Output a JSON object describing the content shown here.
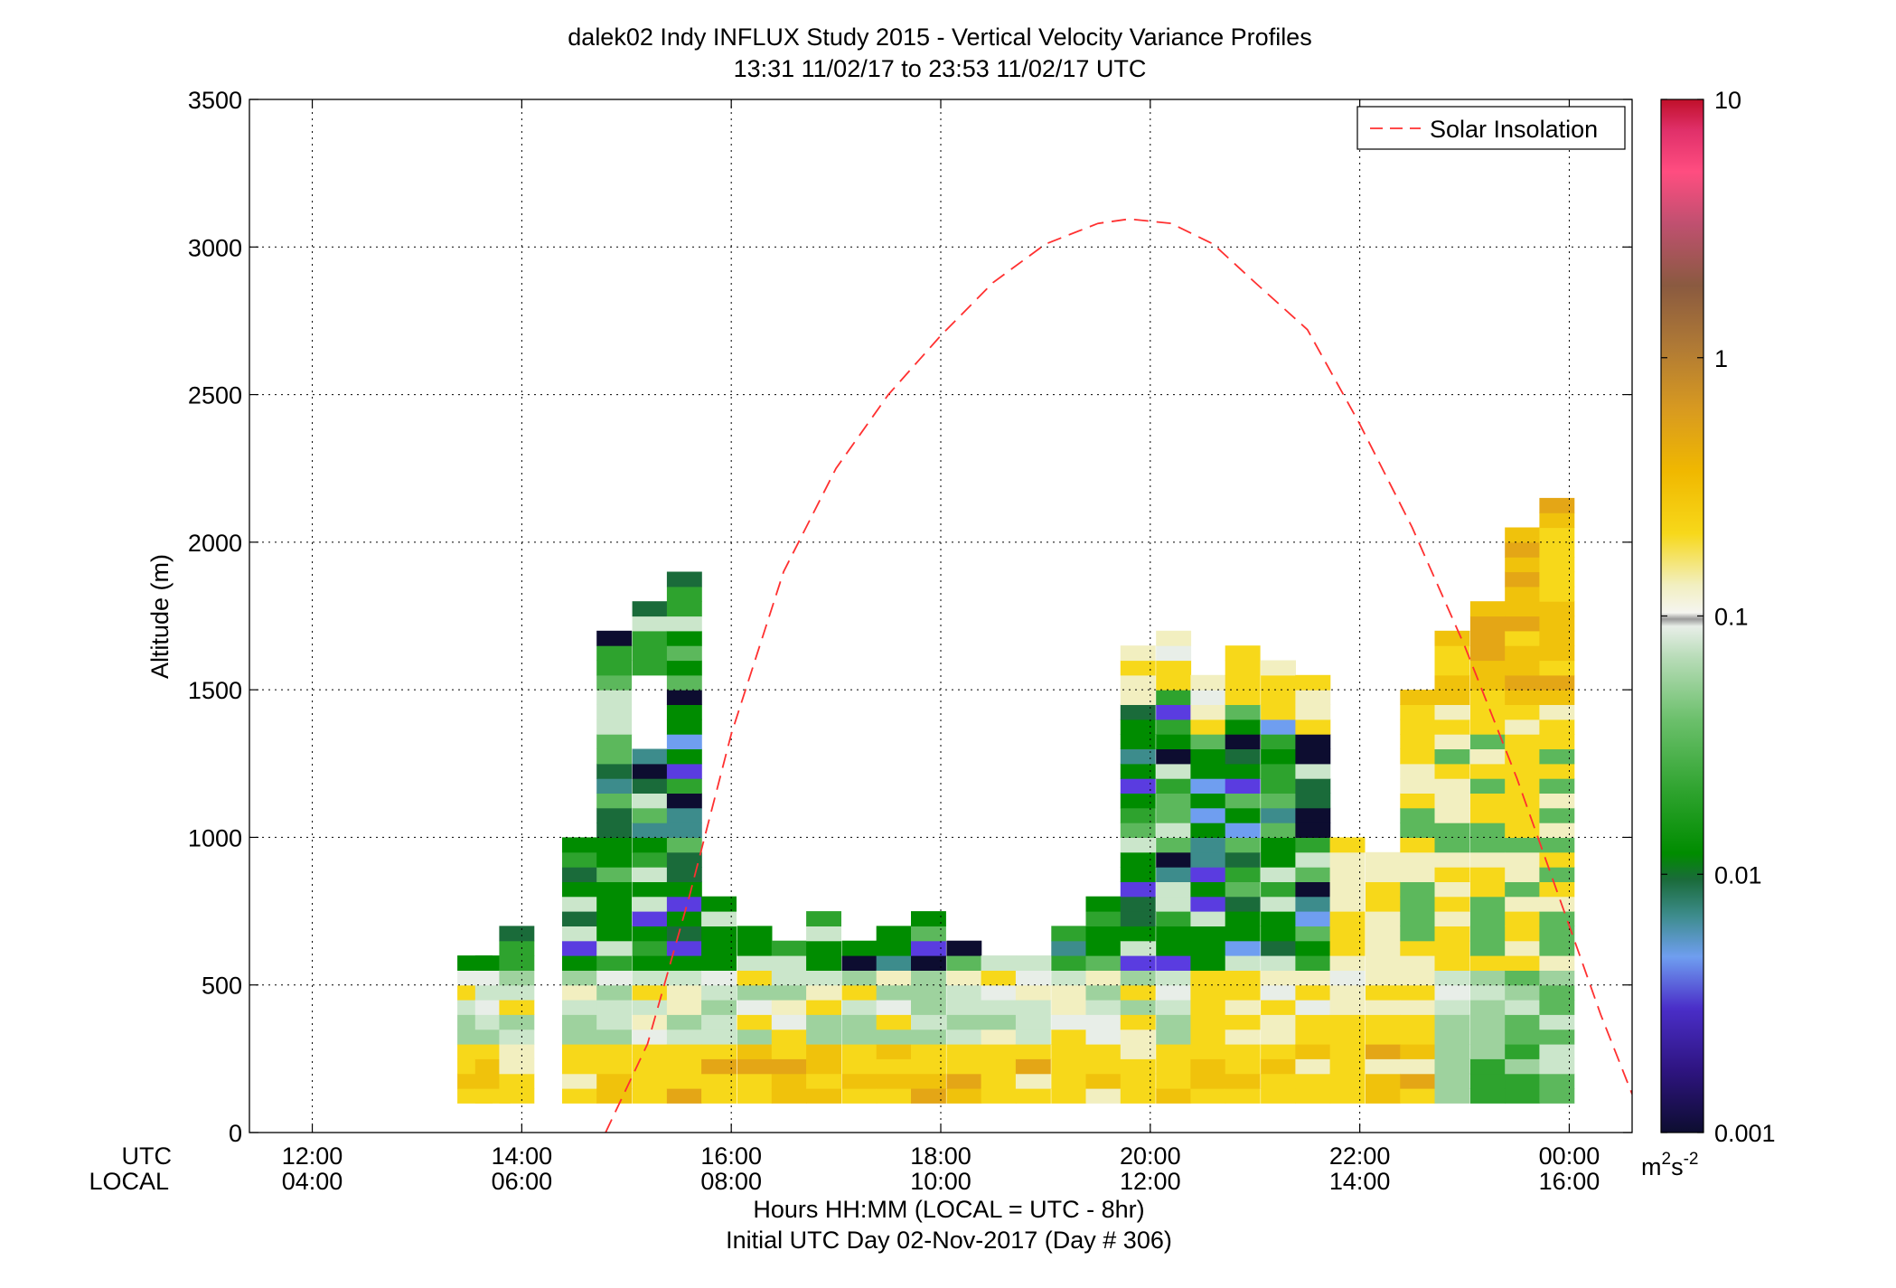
{
  "title": {
    "line1": "dalek02 Indy INFLUX Study 2015 - Vertical Velocity Variance Profiles",
    "line2": "13:31 11/02/17 to 23:53 11/02/17  UTC"
  },
  "axes": {
    "row_label_utc": "UTC",
    "row_label_local": "LOCAL",
    "xlabel": "Hours HH:MM  (LOCAL = UTC - 8hr)",
    "day_label": "Initial UTC Day 02-Nov-2017 (Day # 306)",
    "ylabel": "Altitude (m)"
  },
  "legend": {
    "label": "Solar Insolation",
    "position": "top-right"
  },
  "colorbar": {
    "unit_base": "m",
    "unit_exp1": "2",
    "unit_mid": "s",
    "unit_exp2": "-2",
    "tick_labels": [
      "0.001",
      "0.01",
      "0.1",
      "1",
      "10"
    ]
  },
  "chart_data": {
    "type": "heatmap",
    "title": "dalek02 Indy INFLUX Study 2015 - Vertical Velocity Variance Profiles",
    "subtitle": "13:31 11/02/17 to 23:53 11/02/17  UTC",
    "xlabel": "Hours HH:MM  (LOCAL = UTC - 8hr)",
    "ylabel": "Altitude (m)",
    "xlim_utc_hours": [
      11.4,
      24.6
    ],
    "ylim": [
      0,
      3500
    ],
    "x_ticks_utc": [
      "12:00",
      "14:00",
      "16:00",
      "18:00",
      "20:00",
      "22:00",
      "00:00"
    ],
    "x_ticks_local": [
      "04:00",
      "06:00",
      "08:00",
      "10:00",
      "12:00",
      "14:00",
      "16:00"
    ],
    "x_tick_values_utc_hours": [
      12,
      14,
      16,
      18,
      20,
      22,
      24
    ],
    "y_ticks": [
      0,
      500,
      1000,
      1500,
      2000,
      2500,
      3000,
      3500
    ],
    "grid": true,
    "colorbar": {
      "scale": "log",
      "min": 0.001,
      "max": 10,
      "ticks": [
        0.001,
        0.01,
        0.1,
        1,
        10
      ]
    },
    "cell_height_m": 50,
    "base_altitude_m": 100,
    "columns": [
      {
        "t": 13.55,
        "top": 600
      },
      {
        "t": 13.72,
        "top": 600
      },
      {
        "t": 13.95,
        "top": 700
      },
      {
        "t": 14.55,
        "top": 1000
      },
      {
        "t": 14.88,
        "top": 1700
      },
      {
        "t": 15.22,
        "top": 1800
      },
      {
        "t": 15.55,
        "top": 1900
      },
      {
        "t": 15.88,
        "top": 800
      },
      {
        "t": 16.22,
        "top": 700
      },
      {
        "t": 16.55,
        "top": 650
      },
      {
        "t": 16.88,
        "top": 750
      },
      {
        "t": 17.22,
        "top": 650
      },
      {
        "t": 17.55,
        "top": 700
      },
      {
        "t": 17.88,
        "top": 750
      },
      {
        "t": 18.22,
        "top": 650
      },
      {
        "t": 18.55,
        "top": 600
      },
      {
        "t": 18.88,
        "top": 600
      },
      {
        "t": 19.22,
        "top": 700
      },
      {
        "t": 19.55,
        "top": 800
      },
      {
        "t": 19.88,
        "top": 1650
      },
      {
        "t": 20.22,
        "top": 1700
      },
      {
        "t": 20.55,
        "top": 1550
      },
      {
        "t": 20.88,
        "top": 1650
      },
      {
        "t": 21.22,
        "top": 1600
      },
      {
        "t": 21.55,
        "top": 1550
      },
      {
        "t": 21.88,
        "top": 1000
      },
      {
        "t": 22.22,
        "top": 950
      },
      {
        "t": 22.55,
        "top": 1500
      },
      {
        "t": 22.88,
        "top": 1700
      },
      {
        "t": 23.22,
        "top": 1800
      },
      {
        "t": 23.55,
        "top": 2050
      },
      {
        "t": 23.88,
        "top": 2150
      }
    ],
    "series": [
      {
        "name": "Solar Insolation",
        "style": "dashed",
        "color": "#ff3030",
        "x_utc_hours": [
          14.8,
          15.2,
          15.6,
          16.0,
          16.5,
          17.0,
          17.5,
          18.0,
          18.5,
          19.0,
          19.5,
          19.8,
          20.2,
          20.6,
          21.0,
          21.5,
          22.0,
          22.5,
          23.0,
          23.5,
          24.0,
          24.3,
          24.6
        ],
        "y": [
          0,
          300,
          800,
          1350,
          1900,
          2250,
          2500,
          2700,
          2880,
          3010,
          3080,
          3095,
          3080,
          3010,
          2880,
          2720,
          2400,
          2050,
          1650,
          1200,
          700,
          400,
          130
        ]
      }
    ]
  },
  "colors": {
    "solar": "#ff3030",
    "cmap": [
      "#0d0d30",
      "#3b1a8f",
      "#5a3ce0",
      "#6f9ef0",
      "#3d8c8c",
      "#1a6b3a",
      "#008c00",
      "#2ea32e",
      "#5cb85c",
      "#9ed29e",
      "#cbe6cb",
      "#e8eee8",
      "#f2efc0",
      "#f7d81a",
      "#f0c20c",
      "#e4a616",
      "#c08030",
      "#8a5535",
      "#b85068",
      "#ff4d80",
      "#e0306a",
      "#c0102a"
    ]
  }
}
